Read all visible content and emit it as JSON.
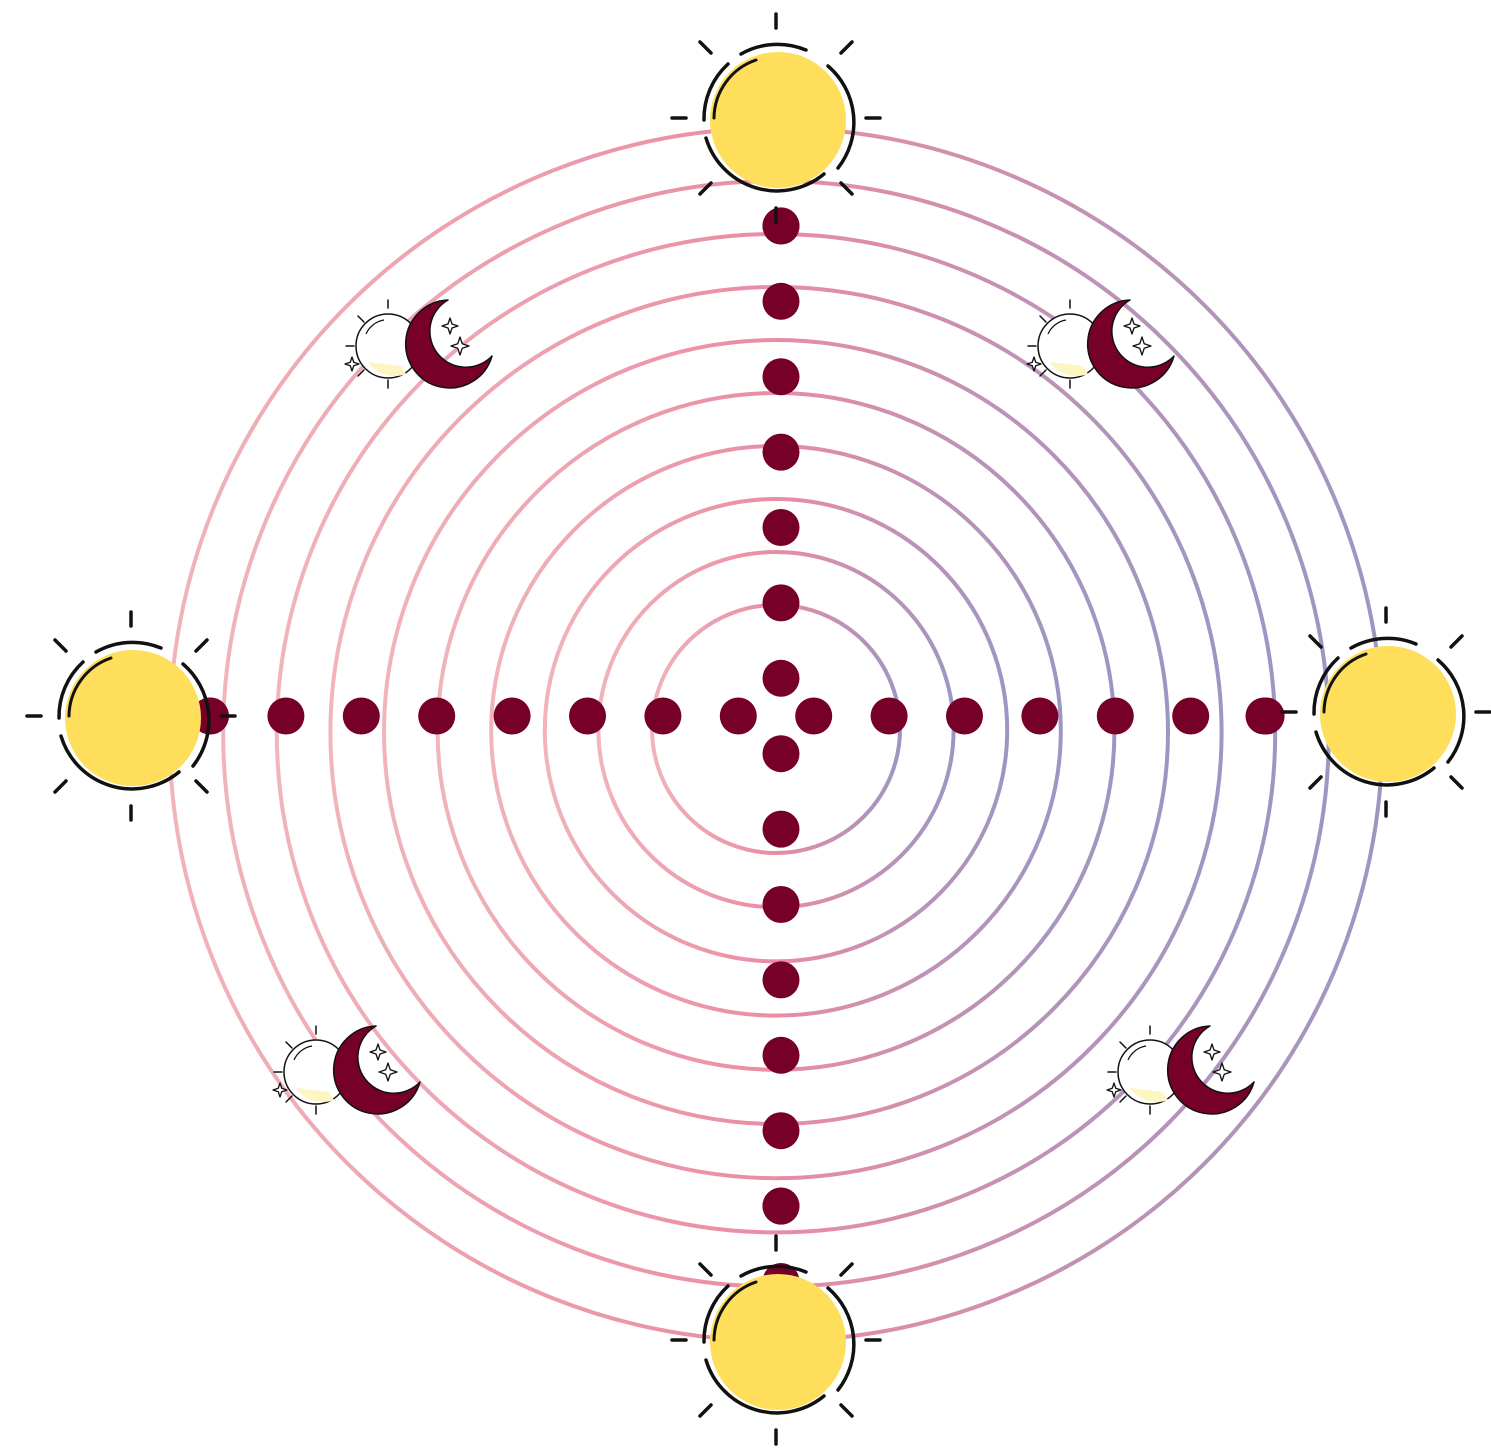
{
  "diagram": {
    "ring_count": 10,
    "dots_per_arm": 8,
    "sun_count": 4,
    "moon_count": 4
  },
  "colors": {
    "background": "#ffffff",
    "ring_warm": "#e8869f",
    "ring_light": "#efb0b6",
    "ring_cool": "#9891bf",
    "dot": "#760028",
    "sun_fill": "#fede5b",
    "outline": "#111111",
    "moon_fill": "#760028",
    "moon_pale": "#fdf6c0"
  },
  "icons": {
    "sun": "sun-icon",
    "moon": "crescent-moon-icon",
    "star": "sparkle-star-icon"
  }
}
